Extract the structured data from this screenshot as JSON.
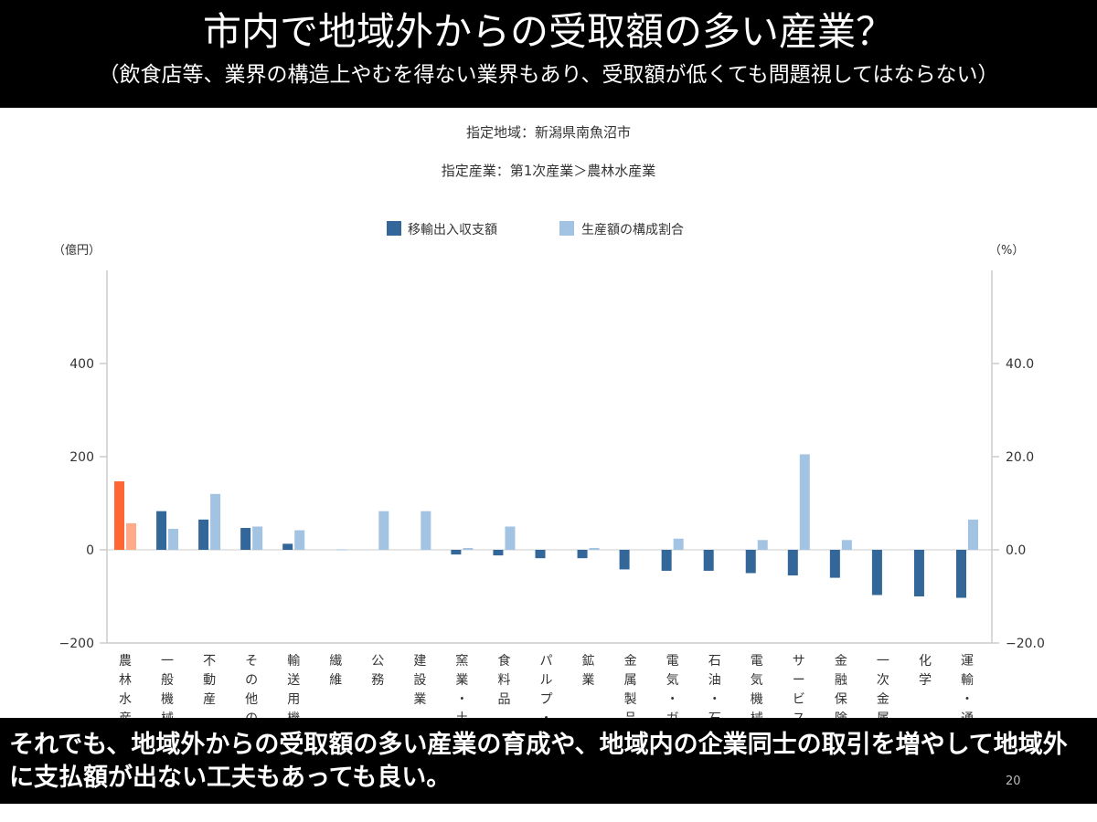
{
  "slide": {
    "title": "市内で地域外からの受取額の多い産業？",
    "subtitle": "（飲食店等、業界の構造上やむを得ない業界もあり、受取額が低くても問題視してはならない）",
    "bottom_text": "それでも、地域外からの受取額の多い産業の育成や、地域内の企業同士の取引を増やして地域外に支払額が出ない工夫もあっても良い。",
    "page_number": "20"
  },
  "chart_data": {
    "type": "bar",
    "title": "指定地域：新潟県南魚沼市",
    "subtitle": "指定産業：第1次産業＞農林水産業",
    "y_left_unit": "（億円）",
    "y_right_unit": "（%）",
    "ylim_left": [
      -200,
      600
    ],
    "ylim_right": [
      -20,
      60
    ],
    "left_ticks": [
      "−200",
      "0",
      "200",
      "400"
    ],
    "left_tick_values": [
      -200,
      0,
      200,
      400
    ],
    "right_ticks": [
      "−20.0",
      "0.0",
      "20.0",
      "40.0"
    ],
    "right_tick_values": [
      -20,
      0,
      20,
      40
    ],
    "legend_position": "top-center",
    "categories": [
      "農林水産",
      "一般機械",
      "不動産",
      "その他の",
      "輸送用機",
      "繊維",
      "公務",
      "建設業",
      "窯業・土",
      "食料品",
      "パルプ・",
      "鉱業",
      "金属製品",
      "電気・ガ",
      "石油・石",
      "電気機械",
      "サービス",
      "金融保険",
      "一次金属",
      "化学",
      "運輸・通"
    ],
    "series": [
      {
        "name": "移輸出入収支額",
        "axis": "left",
        "color": "#336699",
        "values": [
          147,
          83,
          65,
          47,
          13,
          0,
          0,
          0,
          -10,
          -12,
          -18,
          -18,
          -42,
          -45,
          -45,
          -50,
          -55,
          -60,
          -97,
          -100,
          -103
        ]
      },
      {
        "name": "生産額の構成割合",
        "axis": "right",
        "color": "#a3c3e3",
        "values": [
          5.7,
          4.5,
          12.0,
          5.0,
          4.2,
          0.1,
          8.3,
          8.3,
          0.4,
          5.0,
          0,
          0.4,
          0,
          2.4,
          0,
          2.1,
          20.5,
          2.1,
          0,
          0,
          6.5
        ]
      }
    ],
    "highlight_category_index": 0,
    "highlight_colors": [
      "#ff6633",
      "#ffaa88"
    ]
  }
}
